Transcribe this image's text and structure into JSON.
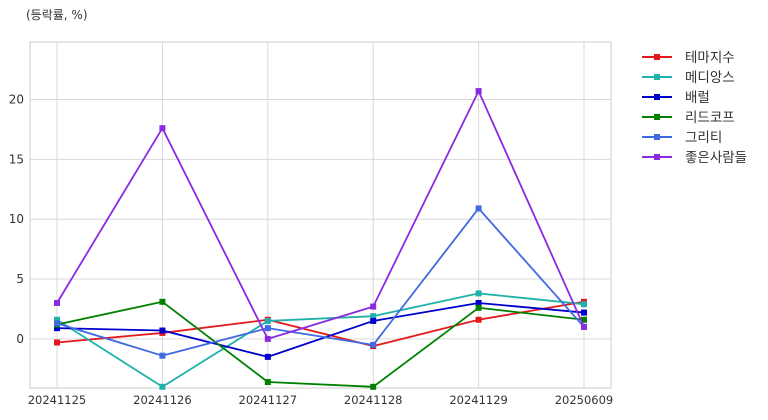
{
  "chart_data": {
    "type": "line",
    "title": "",
    "ylabel": "(등락률, %)",
    "xlabel": "",
    "categories": [
      "20241125",
      "20241126",
      "20241127",
      "20241128",
      "20241129",
      "20250609"
    ],
    "ylim": [
      -4.1,
      24.8
    ],
    "yticks": [
      0,
      5,
      10,
      15,
      20
    ],
    "grid": true,
    "legend_position": "right",
    "series": [
      {
        "name": "테마지수",
        "color": "#e31a1c",
        "marker": "square",
        "values": [
          -0.3,
          0.5,
          1.6,
          -0.6,
          1.6,
          3.1
        ]
      },
      {
        "name": "메디앙스",
        "color": "#20b2aa",
        "marker": "square",
        "values": [
          1.6,
          -4.0,
          1.5,
          1.9,
          3.8,
          2.9
        ]
      },
      {
        "name": "배럴",
        "color": "#0000cd",
        "marker": "square",
        "values": [
          0.9,
          0.7,
          -1.5,
          1.5,
          3.0,
          2.2
        ]
      },
      {
        "name": "리드코프",
        "color": "#008000",
        "marker": "square",
        "values": [
          1.2,
          3.1,
          -3.6,
          -4.0,
          2.6,
          1.6
        ]
      },
      {
        "name": "그리티",
        "color": "#4169e1",
        "marker": "square",
        "values": [
          1.3,
          -1.4,
          0.9,
          -0.5,
          10.9,
          1.0
        ]
      },
      {
        "name": "좋은사람들",
        "color": "#8a2be2",
        "marker": "square",
        "values": [
          3.0,
          17.6,
          0.0,
          2.7,
          20.7,
          1.0
        ]
      }
    ]
  }
}
